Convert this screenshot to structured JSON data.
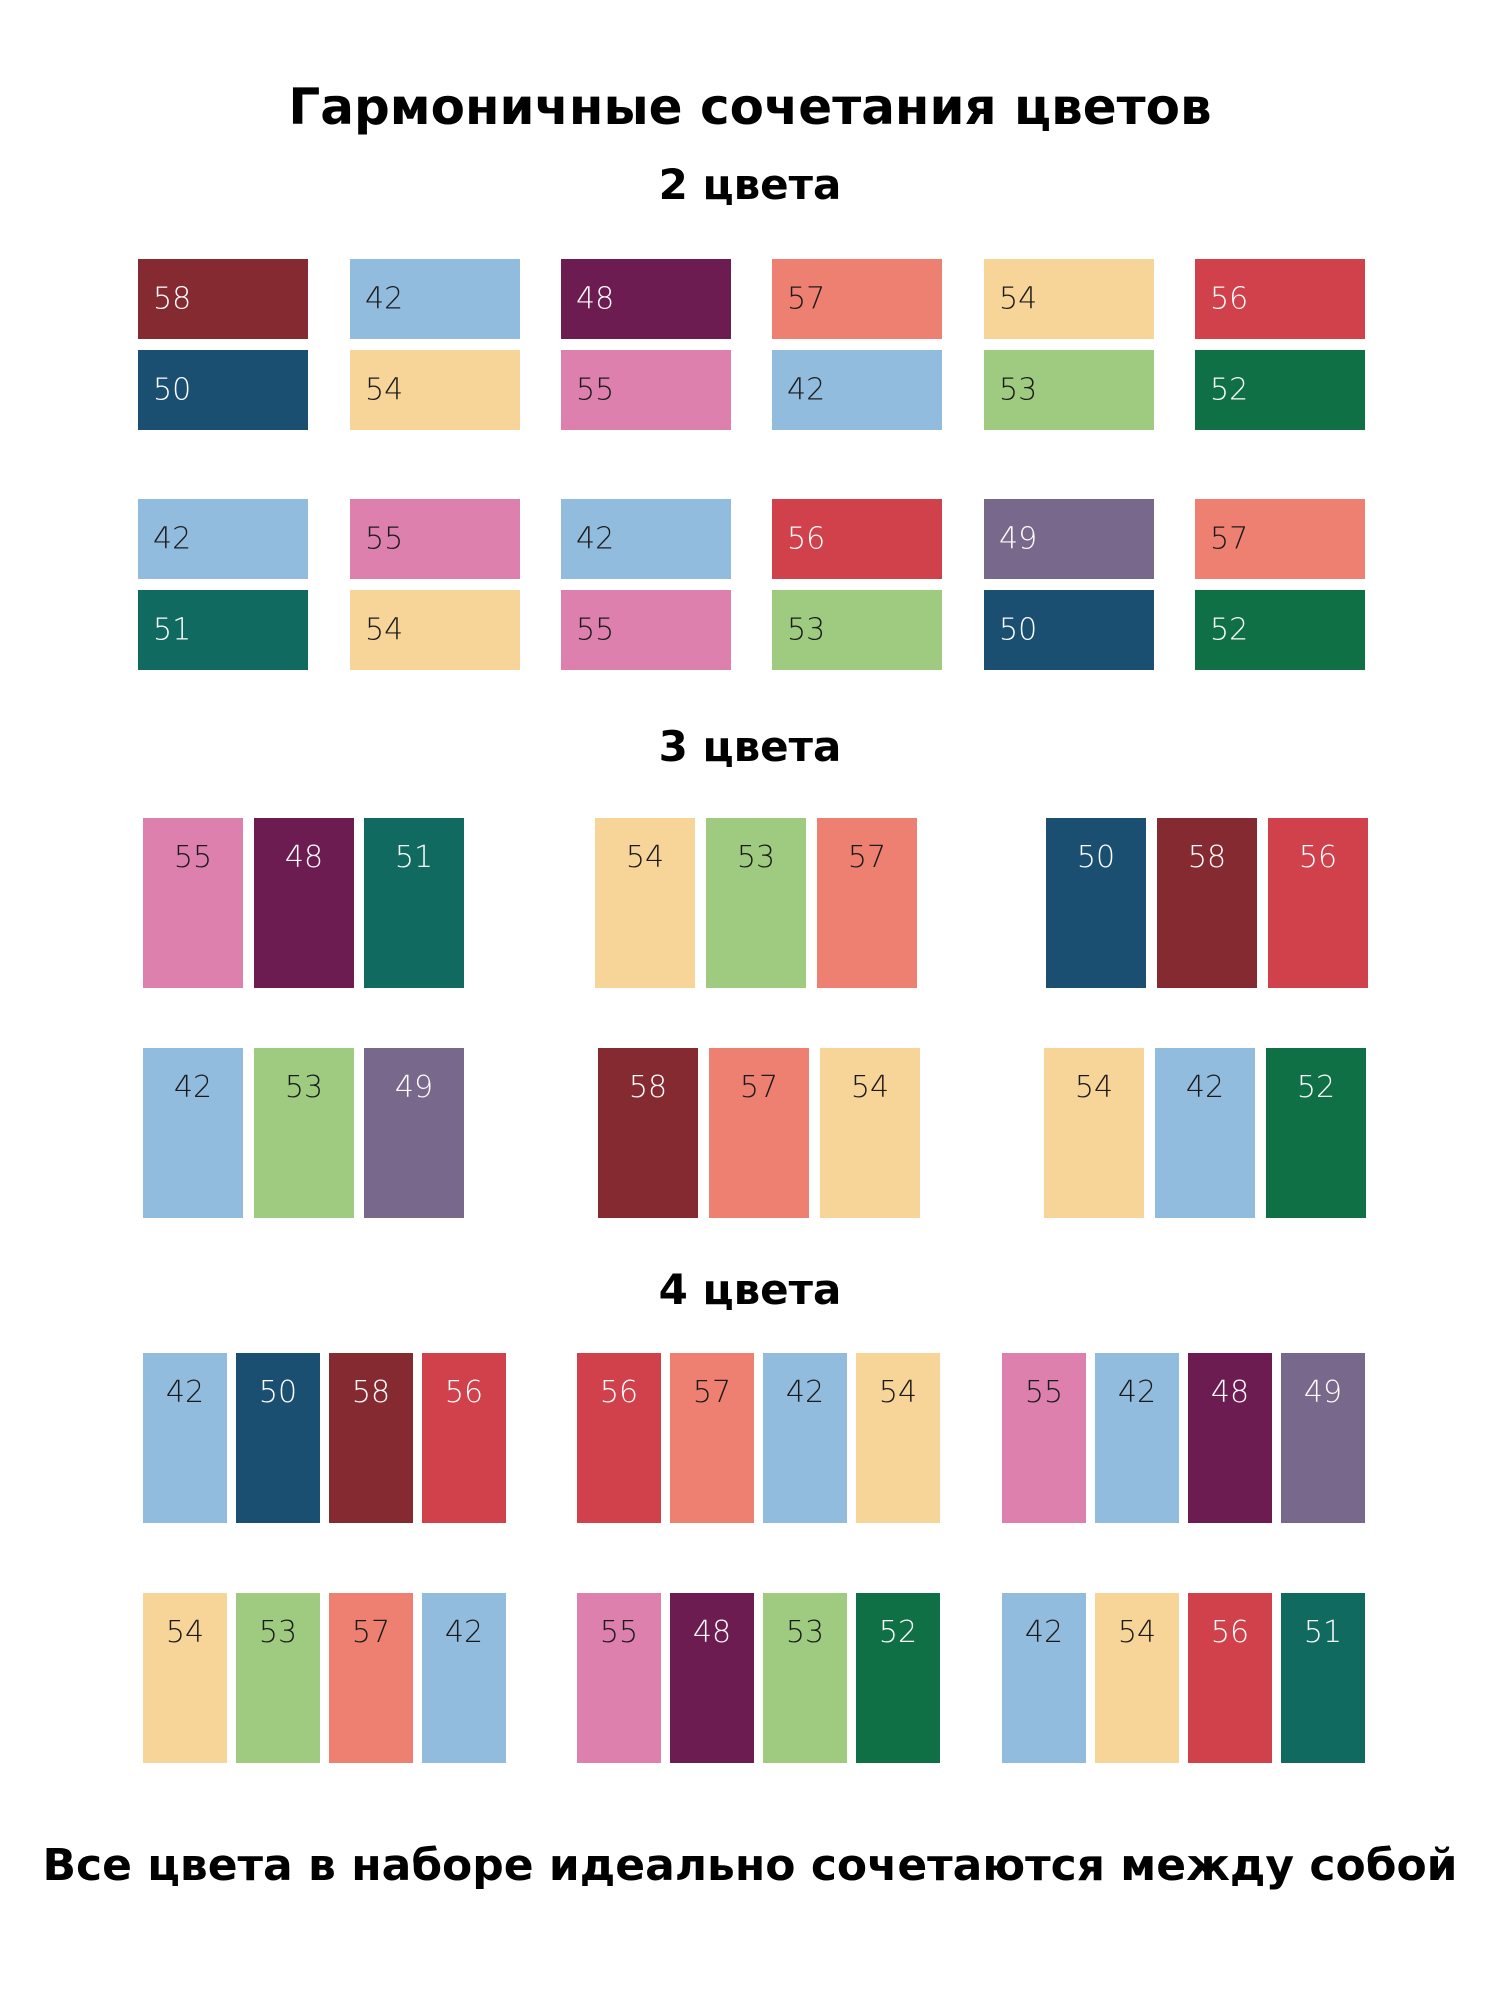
{
  "title": "Гармоничные сочетания цветов",
  "section_titles": [
    "2 цвета",
    "3 цвета",
    "4 цвета"
  ],
  "footer": "Все цвета в наборе идеально сочетаются между собой",
  "palette": {
    "42": {
      "bg": "#92bcdd",
      "fg": "#1a1a1a"
    },
    "48": {
      "bg": "#6c1c51",
      "fg": "#ffffff"
    },
    "49": {
      "bg": "#78688c",
      "fg": "#ffffff"
    },
    "50": {
      "bg": "#1b4f72",
      "fg": "#ffffff"
    },
    "51": {
      "bg": "#116a60",
      "fg": "#ffffff"
    },
    "52": {
      "bg": "#0e7044",
      "fg": "#ffffff"
    },
    "53": {
      "bg": "#9fcb80",
      "fg": "#1a1a1a"
    },
    "54": {
      "bg": "#f7d598",
      "fg": "#1a1a1a"
    },
    "55": {
      "bg": "#dd80ae",
      "fg": "#1a1a1a"
    },
    "56": {
      "bg": "#d1414b",
      "fg": "#ffffff"
    },
    "57": {
      "bg": "#ee8072",
      "fg": "#1a1a1a"
    },
    "58": {
      "bg": "#862a32",
      "fg": "#ffffff"
    }
  },
  "combos_2": [
    [
      "58",
      "50"
    ],
    [
      "42",
      "54"
    ],
    [
      "48",
      "55"
    ],
    [
      "57",
      "42"
    ],
    [
      "54",
      "53"
    ],
    [
      "56",
      "52"
    ],
    [
      "42",
      "51"
    ],
    [
      "55",
      "54"
    ],
    [
      "42",
      "55"
    ],
    [
      "56",
      "53"
    ],
    [
      "49",
      "50"
    ],
    [
      "57",
      "52"
    ]
  ],
  "combos_3": [
    [
      "55",
      "48",
      "51"
    ],
    [
      "54",
      "53",
      "57"
    ],
    [
      "50",
      "58",
      "56"
    ],
    [
      "42",
      "53",
      "49"
    ],
    [
      "58",
      "57",
      "54"
    ],
    [
      "54",
      "42",
      "52"
    ]
  ],
  "combos_4": [
    [
      "42",
      "50",
      "58",
      "56"
    ],
    [
      "56",
      "57",
      "42",
      "54"
    ],
    [
      "55",
      "42",
      "48",
      "49"
    ],
    [
      "54",
      "53",
      "57",
      "42"
    ],
    [
      "55",
      "48",
      "53",
      "52"
    ],
    [
      "42",
      "54",
      "56",
      "51"
    ]
  ]
}
